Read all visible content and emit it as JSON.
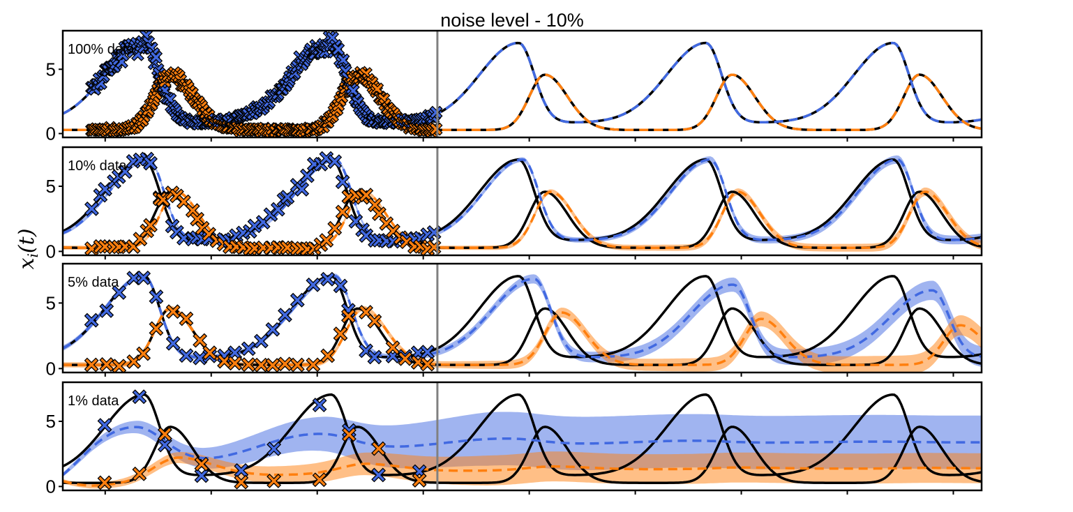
{
  "colors": {
    "species_1": "#4169E1",
    "species_2": "#FF7F0E",
    "true_solution": "#000000",
    "divider": "#808080"
  },
  "chart_data": {
    "type": "line",
    "title": "noise level - 10%",
    "ylabel": "x_i(t)",
    "ylabel_display": "xi(t)",
    "xlabel": "",
    "x_tick_labels": "none",
    "ylim": [
      -0.3,
      8.0
    ],
    "y_ticks": [
      0,
      5
    ],
    "x_range": [
      0,
      13
    ],
    "train_test_split_x": 5.3,
    "grid": false,
    "legend": "none",
    "series": [
      {
        "color": "species_1",
        "style": "solid + dashed mean with shaded band"
      },
      {
        "color": "species_2",
        "style": "solid + dashed mean with shaded band"
      }
    ],
    "panels": [
      {
        "label": "100% data",
        "observation_fraction": 1.0,
        "markers_per_series": 230
      },
      {
        "label": "10% data",
        "observation_fraction": 0.1,
        "markers_per_series": 53
      },
      {
        "label": "5% data",
        "observation_fraction": 0.05,
        "markers_per_series": 27
      },
      {
        "label": "1% data",
        "observation_fraction": 0.01,
        "markers_per_series": 10
      }
    ]
  }
}
